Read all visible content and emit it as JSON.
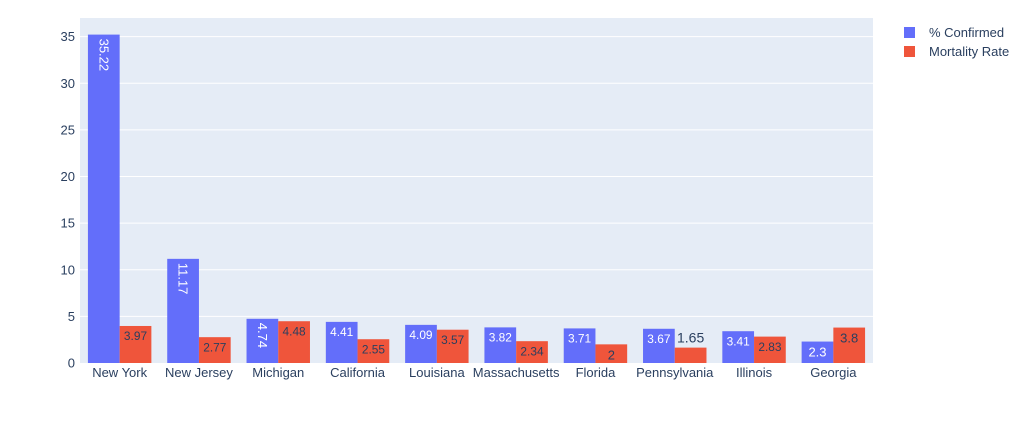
{
  "chart_data": {
    "type": "bar",
    "barmode": "group",
    "categories": [
      "New York",
      "New Jersey",
      "Michigan",
      "California",
      "Louisiana",
      "Massachusetts",
      "Florida",
      "Pennsylvania",
      "Illinois",
      "Georgia"
    ],
    "series": [
      {
        "name": "% Confirmed",
        "color": "#636efa",
        "values": [
          35.22,
          11.17,
          4.74,
          4.41,
          4.09,
          3.82,
          3.71,
          3.67,
          3.41,
          2.3
        ],
        "labels": [
          "35.22",
          "11.17",
          "4.74",
          "4.41",
          "4.09",
          "3.82",
          "3.71",
          "3.67",
          "3.41",
          "2.3"
        ]
      },
      {
        "name": "Mortality Rate",
        "color": "#ef553b",
        "values": [
          3.97,
          2.77,
          4.48,
          2.55,
          3.57,
          2.34,
          2,
          1.65,
          2.83,
          3.8
        ],
        "labels": [
          "3.97",
          "2.77",
          "4.48",
          "2.55",
          "3.57",
          "2.34",
          "2",
          "1.65",
          "2.83",
          "3.8"
        ]
      }
    ],
    "yticks": [
      0,
      5,
      10,
      15,
      20,
      25,
      30,
      35
    ],
    "ylim": [
      0,
      37
    ],
    "title": "",
    "xlabel": "",
    "ylabel": "",
    "legend_position": "top-right",
    "plot_background": "#e5ecf6",
    "grid_color": "#ffffff",
    "text_color": "#2a3f5f"
  }
}
